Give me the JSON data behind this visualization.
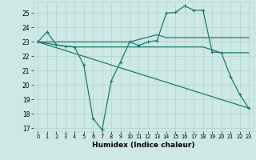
{
  "xlabel": "Humidex (Indice chaleur)",
  "xlim": [
    -0.5,
    23.5
  ],
  "ylim": [
    16.8,
    25.8
  ],
  "yticks": [
    17,
    18,
    19,
    20,
    21,
    22,
    23,
    24,
    25
  ],
  "xticks": [
    0,
    1,
    2,
    3,
    4,
    5,
    6,
    7,
    8,
    9,
    10,
    11,
    12,
    13,
    14,
    15,
    16,
    17,
    18,
    19,
    20,
    21,
    22,
    23
  ],
  "bg_color": "#cde8e5",
  "grid_color": "#b8d8d4",
  "line_color": "#1e7a6e",
  "lines": [
    {
      "x": [
        0,
        1,
        2,
        3,
        4,
        5,
        6,
        7,
        8,
        9,
        10,
        11,
        12,
        13,
        14,
        15,
        16,
        17,
        18,
        19,
        20,
        21,
        22,
        23
      ],
      "y": [
        23.0,
        23.7,
        22.8,
        22.7,
        22.65,
        21.4,
        17.7,
        16.9,
        20.3,
        21.6,
        23.0,
        22.75,
        23.0,
        23.1,
        25.0,
        25.05,
        25.5,
        25.2,
        25.2,
        22.3,
        22.25,
        20.6,
        19.35,
        18.4
      ],
      "marker": "+"
    },
    {
      "x": [
        0,
        3,
        10,
        13,
        14,
        18,
        20,
        21,
        22,
        23
      ],
      "y": [
        23.0,
        23.0,
        23.0,
        23.5,
        23.3,
        23.3,
        23.3,
        23.3,
        23.3,
        23.3
      ],
      "marker": null
    },
    {
      "x": [
        0,
        3,
        4,
        10,
        11,
        18,
        20,
        21,
        22,
        23
      ],
      "y": [
        23.0,
        22.7,
        22.65,
        22.65,
        22.65,
        22.65,
        22.25,
        22.25,
        22.25,
        22.25
      ],
      "marker": null
    },
    {
      "x": [
        0,
        23
      ],
      "y": [
        23.0,
        18.4
      ],
      "marker": null
    }
  ]
}
